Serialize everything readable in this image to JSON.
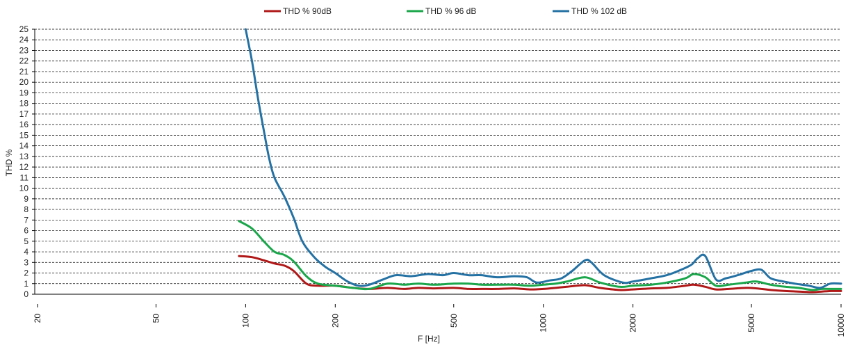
{
  "chart_data": {
    "type": "line",
    "title": "",
    "xlabel": "F [Hz]",
    "ylabel": "THD %",
    "xscale": "log",
    "xlim": [
      20,
      10000
    ],
    "ylim": [
      0,
      25
    ],
    "x_ticks": [
      20,
      50,
      100,
      200,
      500,
      1000,
      2000,
      5000,
      10000
    ],
    "x_tick_labels": [
      "20",
      "50",
      "100",
      "200",
      "500",
      "1000",
      "2000",
      "5000",
      "10000"
    ],
    "y_ticks": [
      0,
      1,
      2,
      3,
      4,
      5,
      6,
      7,
      8,
      9,
      10,
      11,
      12,
      13,
      14,
      15,
      16,
      17,
      18,
      19,
      20,
      21,
      22,
      23,
      24,
      25
    ],
    "y_tick_labels": [
      "0",
      "1",
      "2",
      "3",
      "4",
      "5",
      "6",
      "7",
      "8",
      "9",
      "10",
      "11",
      "12",
      "13",
      "14",
      "15",
      "16",
      "17",
      "18",
      "19",
      "20",
      "21",
      "22",
      "23",
      "24",
      "25"
    ],
    "grid": "horizontal dashed",
    "legend_position": "top",
    "series": [
      {
        "name": "THD % 90dB",
        "color": "#b01818",
        "x": [
          95,
          105,
          115,
          125,
          135,
          145,
          160,
          175,
          200,
          230,
          260,
          300,
          340,
          380,
          430,
          500,
          560,
          620,
          700,
          800,
          900,
          1000,
          1100,
          1200,
          1380,
          1550,
          1800,
          2000,
          2300,
          2600,
          3000,
          3200,
          3500,
          3800,
          4200,
          4800,
          5200,
          5800,
          6500,
          7200,
          8000,
          8600,
          9300,
          10000
        ],
        "values": [
          3.6,
          3.5,
          3.2,
          2.9,
          2.7,
          2.2,
          1.0,
          0.8,
          0.8,
          0.6,
          0.5,
          0.6,
          0.5,
          0.6,
          0.55,
          0.6,
          0.5,
          0.5,
          0.5,
          0.55,
          0.45,
          0.5,
          0.6,
          0.7,
          0.85,
          0.6,
          0.4,
          0.45,
          0.55,
          0.6,
          0.8,
          0.9,
          0.7,
          0.45,
          0.5,
          0.6,
          0.55,
          0.4,
          0.3,
          0.25,
          0.2,
          0.25,
          0.3,
          0.3
        ]
      },
      {
        "name": "THD % 96 dB",
        "color": "#1aa64a",
        "x": [
          95,
          105,
          115,
          125,
          135,
          145,
          160,
          175,
          200,
          230,
          260,
          300,
          340,
          380,
          430,
          500,
          560,
          620,
          700,
          800,
          900,
          1000,
          1100,
          1200,
          1380,
          1550,
          1800,
          2000,
          2300,
          2600,
          3000,
          3200,
          3500,
          3800,
          4200,
          4800,
          5200,
          5800,
          6500,
          7200,
          8000,
          8600,
          9300,
          10000
        ],
        "values": [
          6.9,
          6.2,
          5.0,
          4.0,
          3.7,
          3.1,
          1.7,
          1.0,
          0.8,
          0.6,
          0.5,
          1.0,
          0.9,
          1.0,
          0.9,
          1.0,
          1.0,
          0.9,
          0.9,
          0.9,
          0.8,
          0.9,
          1.0,
          1.2,
          1.6,
          1.1,
          0.7,
          0.8,
          0.9,
          1.1,
          1.5,
          1.9,
          1.6,
          0.8,
          0.9,
          1.1,
          1.2,
          0.9,
          0.7,
          0.6,
          0.4,
          0.5,
          0.5,
          0.5
        ]
      },
      {
        "name": "THD % 102 dB",
        "color": "#2471a3",
        "x": [
          100,
          105,
          110,
          115,
          120,
          125,
          135,
          145,
          155,
          170,
          185,
          200,
          220,
          240,
          260,
          290,
          320,
          360,
          410,
          460,
          500,
          560,
          620,
          700,
          800,
          880,
          950,
          1050,
          1150,
          1250,
          1380,
          1450,
          1600,
          1850,
          2000,
          2300,
          2600,
          2900,
          3150,
          3300,
          3500,
          3800,
          4100,
          4500,
          5000,
          5400,
          5800,
          6400,
          7000,
          7800,
          8500,
          9200,
          10000
        ],
        "values": [
          25,
          22,
          18.5,
          15.5,
          12.8,
          11.0,
          9.2,
          7.2,
          5.0,
          3.5,
          2.6,
          2.0,
          1.2,
          0.8,
          0.9,
          1.4,
          1.8,
          1.7,
          1.9,
          1.8,
          2.0,
          1.8,
          1.8,
          1.6,
          1.7,
          1.6,
          1.1,
          1.3,
          1.5,
          2.2,
          3.2,
          3.0,
          1.8,
          1.1,
          1.2,
          1.5,
          1.8,
          2.3,
          2.8,
          3.4,
          3.6,
          1.4,
          1.5,
          1.8,
          2.2,
          2.3,
          1.5,
          1.2,
          1.0,
          0.8,
          0.6,
          1.0,
          1.0
        ]
      }
    ]
  }
}
